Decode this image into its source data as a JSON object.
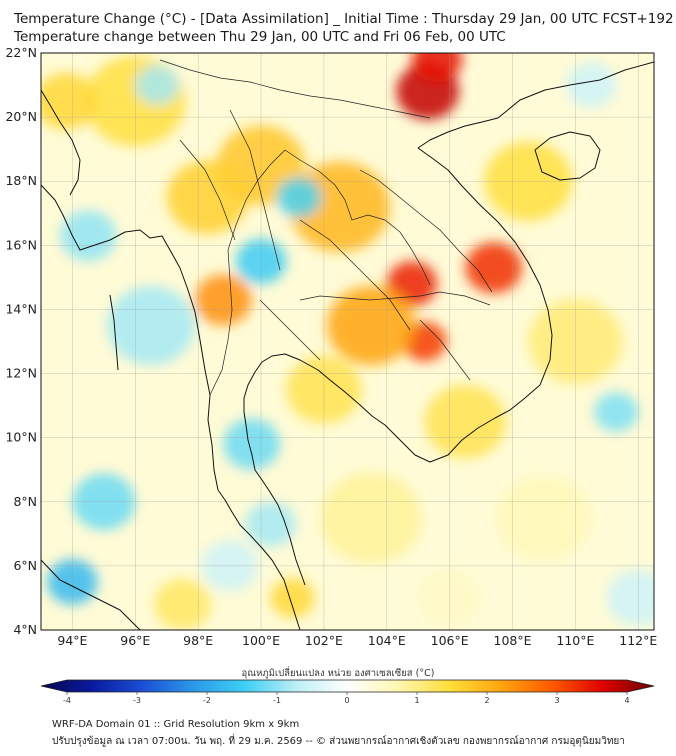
{
  "header": {
    "title_line1": "Temperature Change (°C) - [Data Assimilation] _ Initial Time : Thursday 29 Jan, 00 UTC FCST+192",
    "title_line2": "Temperature change between Thu 29 Jan, 00 UTC and Fri 06 Feb, 00 UTC"
  },
  "map": {
    "lat_range": [
      4,
      22
    ],
    "lon_range": [
      93,
      112.5
    ],
    "lat_ticks": [
      {
        "value": 22,
        "label": "22°N"
      },
      {
        "value": 20,
        "label": "20°N"
      },
      {
        "value": 18,
        "label": "18°N"
      },
      {
        "value": 16,
        "label": "16°N"
      },
      {
        "value": 14,
        "label": "14°N"
      },
      {
        "value": 12,
        "label": "12°N"
      },
      {
        "value": 10,
        "label": "10°N"
      },
      {
        "value": 8,
        "label": "8°N"
      },
      {
        "value": 6,
        "label": "6°N"
      },
      {
        "value": 4,
        "label": "4°N"
      }
    ],
    "lon_ticks": [
      {
        "value": 94,
        "label": "94°E"
      },
      {
        "value": 96,
        "label": "96°E"
      },
      {
        "value": 98,
        "label": "98°E"
      },
      {
        "value": 100,
        "label": "100°E"
      },
      {
        "value": 102,
        "label": "102°E"
      },
      {
        "value": 104,
        "label": "104°E"
      },
      {
        "value": 106,
        "label": "106°E"
      },
      {
        "value": 108,
        "label": "108°E"
      },
      {
        "value": 110,
        "label": "110°E"
      },
      {
        "value": 112,
        "label": "112°E"
      }
    ],
    "anomalies": [
      {
        "lon": 105.3,
        "lat": 20.8,
        "value": 3.5,
        "spread": 1.0
      },
      {
        "lon": 105.6,
        "lat": 21.8,
        "value": 3.2,
        "spread": 0.8
      },
      {
        "lon": 107.4,
        "lat": 15.3,
        "value": 3.0,
        "spread": 0.9
      },
      {
        "lon": 104.8,
        "lat": 14.8,
        "value": 3.1,
        "spread": 0.8
      },
      {
        "lon": 105.2,
        "lat": 13.0,
        "value": 2.9,
        "spread": 0.7
      },
      {
        "lon": 103.5,
        "lat": 13.5,
        "value": 2.0,
        "spread": 1.4
      },
      {
        "lon": 102.5,
        "lat": 17.2,
        "value": 1.8,
        "spread": 1.6
      },
      {
        "lon": 100.0,
        "lat": 18.5,
        "value": 1.6,
        "spread": 1.4
      },
      {
        "lon": 98.8,
        "lat": 14.3,
        "value": 2.2,
        "spread": 0.9
      },
      {
        "lon": 98.3,
        "lat": 17.5,
        "value": 1.5,
        "spread": 1.3
      },
      {
        "lon": 96.0,
        "lat": 20.5,
        "value": 1.3,
        "spread": 1.6
      },
      {
        "lon": 93.8,
        "lat": 20.5,
        "value": 1.4,
        "spread": 1.0
      },
      {
        "lon": 108.5,
        "lat": 18.0,
        "value": 1.3,
        "spread": 1.4
      },
      {
        "lon": 110.0,
        "lat": 13.0,
        "value": 1.0,
        "spread": 1.5
      },
      {
        "lon": 106.5,
        "lat": 10.5,
        "value": 1.2,
        "spread": 1.3
      },
      {
        "lon": 102.0,
        "lat": 11.5,
        "value": 1.2,
        "spread": 1.2
      },
      {
        "lon": 103.5,
        "lat": 7.5,
        "value": 0.8,
        "spread": 1.6
      },
      {
        "lon": 101.0,
        "lat": 5.0,
        "value": 1.4,
        "spread": 0.7
      },
      {
        "lon": 97.5,
        "lat": 4.8,
        "value": 1.1,
        "spread": 0.9
      },
      {
        "lon": 109.0,
        "lat": 7.5,
        "value": 0.6,
        "spread": 1.5
      },
      {
        "lon": 101.2,
        "lat": 17.5,
        "value": -1.3,
        "spread": 0.7
      },
      {
        "lon": 100.0,
        "lat": 15.5,
        "value": -1.4,
        "spread": 0.8
      },
      {
        "lon": 99.7,
        "lat": 9.8,
        "value": -1.1,
        "spread": 0.9
      },
      {
        "lon": 100.3,
        "lat": 7.3,
        "value": -0.8,
        "spread": 0.8
      },
      {
        "lon": 94.0,
        "lat": 5.5,
        "value": -1.6,
        "spread": 0.8
      },
      {
        "lon": 95.0,
        "lat": 8.0,
        "value": -1.1,
        "spread": 1.0
      },
      {
        "lon": 96.5,
        "lat": 13.5,
        "value": -0.8,
        "spread": 1.4
      },
      {
        "lon": 94.5,
        "lat": 16.3,
        "value": -0.9,
        "spread": 0.9
      },
      {
        "lon": 96.7,
        "lat": 21.0,
        "value": -0.8,
        "spread": 0.7
      },
      {
        "lon": 111.3,
        "lat": 10.8,
        "value": -1.0,
        "spread": 0.7
      },
      {
        "lon": 110.5,
        "lat": 21.0,
        "value": -0.5,
        "spread": 0.8
      },
      {
        "lon": 99.0,
        "lat": 6.0,
        "value": -0.5,
        "spread": 0.9
      },
      {
        "lon": 112.0,
        "lat": 5.0,
        "value": -0.5,
        "spread": 1.0
      },
      {
        "lon": 106.0,
        "lat": 5.0,
        "value": 0.5,
        "spread": 1.0
      }
    ]
  },
  "colorbar": {
    "title": "อุณหภูมิเปลี่ยนแปลง หน่วย องศาเซลเซียส (°C)",
    "min": -4,
    "max": 4,
    "ticks": [
      {
        "value": -4,
        "label": "-4"
      },
      {
        "value": -3,
        "label": "-3"
      },
      {
        "value": -2,
        "label": "-2"
      },
      {
        "value": -1,
        "label": "-1"
      },
      {
        "value": 0,
        "label": "0"
      },
      {
        "value": 1,
        "label": "1"
      },
      {
        "value": 2,
        "label": "2"
      },
      {
        "value": 3,
        "label": "3"
      },
      {
        "value": 4,
        "label": "4"
      }
    ],
    "stops": [
      "#05064f",
      "#0a1a9e",
      "#1b4fd6",
      "#2b9ae8",
      "#3fd0f5",
      "#bdeff5",
      "#ffffff",
      "#fff7b0",
      "#ffde3a",
      "#ffa50f",
      "#ff5a00",
      "#e00000",
      "#6b0000"
    ]
  },
  "footer": {
    "line1": "WRF-DA Domain 01 :: Grid Resolution 9km x 9km",
    "line2": "ปรับปรุงข้อมูล ณ เวลา 07:00น. วัน พฤ. ที่ 29 ม.ค. 2569 -- © ส่วนพยากรณ์อากาศเชิงตัวเลข กองพยากรณ์อากาศ กรมอุตุนิยมวิทยา"
  }
}
